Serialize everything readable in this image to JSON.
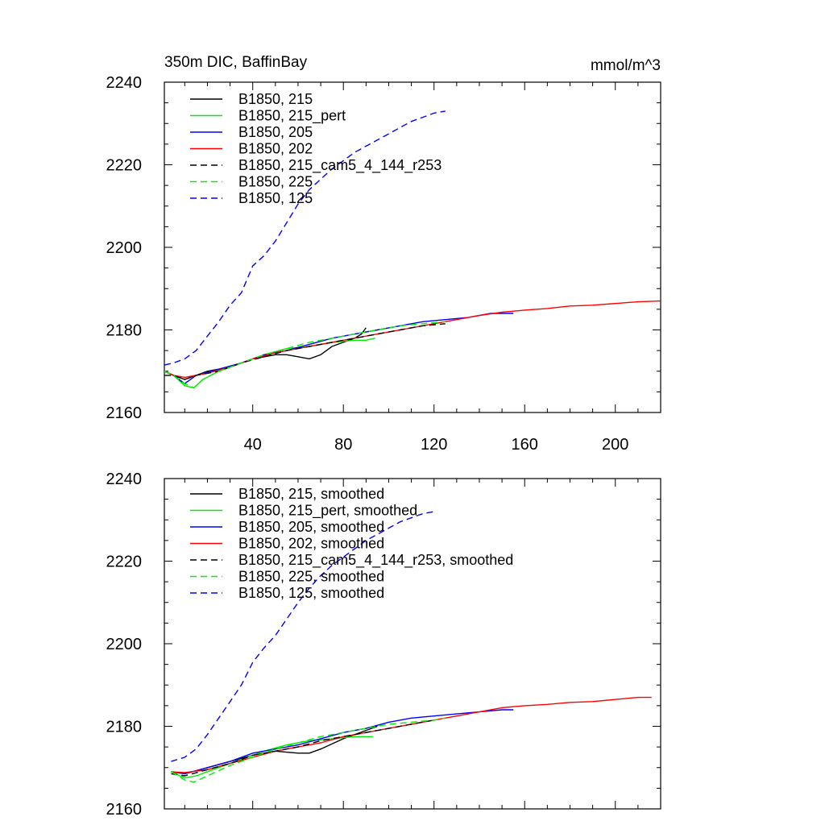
{
  "title_left": "350m DIC, BaffinBay",
  "title_right": "mmol/m^3",
  "x_ticks": [
    40,
    80,
    120,
    160,
    200
  ],
  "y_ticks": [
    2160,
    2180,
    2200,
    2220,
    2240
  ],
  "chart_data": [
    {
      "type": "line",
      "title": "350m DIC, BaffinBay",
      "units": "mmol/m^3",
      "xlim": [
        1,
        220
      ],
      "ylim": [
        2160,
        2240
      ],
      "x_tick_labels": [
        "40",
        "80",
        "120",
        "160",
        "200"
      ],
      "y_tick_labels": [
        "2160",
        "2180",
        "2200",
        "2220",
        "2240"
      ],
      "legend_position": "top-left",
      "grid": false,
      "series": [
        {
          "name": "B1850, 215",
          "color": "#000000",
          "dash": "solid",
          "points": [
            [
              1,
              2170
            ],
            [
              5,
              2169
            ],
            [
              10,
              2168
            ],
            [
              15,
              2169
            ],
            [
              20,
              2170
            ],
            [
              30,
              2171
            ],
            [
              40,
              2173
            ],
            [
              50,
              2174
            ],
            [
              55,
              2174
            ],
            [
              60,
              2173.5
            ],
            [
              65,
              2173
            ],
            [
              70,
              2174
            ],
            [
              75,
              2176
            ],
            [
              80,
              2177
            ],
            [
              85,
              2178
            ],
            [
              88,
              2179
            ],
            [
              90,
              2180.5
            ]
          ]
        },
        {
          "name": "B1850, 215_pert",
          "color": "#00ee00",
          "dash": "solid",
          "points": [
            [
              1,
              2170
            ],
            [
              5,
              2169
            ],
            [
              10,
              2166.5
            ],
            [
              14,
              2166
            ],
            [
              18,
              2168
            ],
            [
              25,
              2170
            ],
            [
              35,
              2172
            ],
            [
              45,
              2174
            ],
            [
              55,
              2175.5
            ],
            [
              65,
              2176
            ],
            [
              75,
              2177
            ],
            [
              85,
              2177.5
            ],
            [
              90,
              2177.5
            ],
            [
              94,
              2178
            ]
          ]
        },
        {
          "name": "B1850, 205",
          "color": "#0000ff",
          "dash": "solid",
          "points": [
            [
              1,
              2170
            ],
            [
              5,
              2169
            ],
            [
              10,
              2167
            ],
            [
              15,
              2169
            ],
            [
              25,
              2170.5
            ],
            [
              35,
              2172
            ],
            [
              45,
              2174
            ],
            [
              55,
              2175
            ],
            [
              65,
              2176.5
            ],
            [
              75,
              2178
            ],
            [
              85,
              2179
            ],
            [
              95,
              2180
            ],
            [
              105,
              2181
            ],
            [
              115,
              2182
            ],
            [
              125,
              2182.5
            ],
            [
              135,
              2183
            ],
            [
              145,
              2184
            ],
            [
              155,
              2184
            ]
          ]
        },
        {
          "name": "B1850, 202",
          "color": "#ff0000",
          "dash": "solid",
          "points": [
            [
              1,
              2170
            ],
            [
              5,
              2169
            ],
            [
              10,
              2168.5
            ],
            [
              20,
              2169.5
            ],
            [
              30,
              2171
            ],
            [
              40,
              2173
            ],
            [
              50,
              2174.5
            ],
            [
              60,
              2175.5
            ],
            [
              70,
              2176.5
            ],
            [
              80,
              2177.5
            ],
            [
              90,
              2178.5
            ],
            [
              100,
              2179.5
            ],
            [
              110,
              2180.5
            ],
            [
              120,
              2181.5
            ],
            [
              130,
              2182.5
            ],
            [
              140,
              2183.5
            ],
            [
              150,
              2184.3
            ],
            [
              160,
              2184.8
            ],
            [
              170,
              2185.2
            ],
            [
              180,
              2185.8
            ],
            [
              190,
              2186
            ],
            [
              200,
              2186.4
            ],
            [
              210,
              2186.8
            ],
            [
              220,
              2187
            ]
          ]
        },
        {
          "name": "B1850, 215_cam5_4_144_r253",
          "color": "#000000",
          "dash": "dashed",
          "points": [
            [
              1,
              2169
            ],
            [
              5,
              2169
            ],
            [
              10,
              2168
            ],
            [
              15,
              2169
            ],
            [
              25,
              2170
            ],
            [
              35,
              2172
            ],
            [
              45,
              2173.5
            ],
            [
              55,
              2175
            ],
            [
              65,
              2176
            ],
            [
              75,
              2177
            ],
            [
              85,
              2178
            ],
            [
              95,
              2179
            ],
            [
              105,
              2180
            ],
            [
              115,
              2181
            ],
            [
              125,
              2181.5
            ]
          ]
        },
        {
          "name": "B1850, 225",
          "color": "#00ee00",
          "dash": "dashed",
          "points": [
            [
              1,
              2170
            ],
            [
              5,
              2169
            ],
            [
              10,
              2167
            ],
            [
              14,
              2166
            ],
            [
              18,
              2168
            ],
            [
              25,
              2170
            ],
            [
              35,
              2172
            ],
            [
              45,
              2174
            ],
            [
              55,
              2175.5
            ],
            [
              65,
              2177
            ],
            [
              75,
              2178
            ],
            [
              85,
              2179
            ],
            [
              95,
              2180
            ],
            [
              105,
              2181
            ],
            [
              115,
              2181.5
            ],
            [
              125,
              2182
            ]
          ]
        },
        {
          "name": "B1850, 125",
          "color": "#0000ff",
          "dash": "dashed",
          "points": [
            [
              1,
              2171.5
            ],
            [
              5,
              2172
            ],
            [
              10,
              2173
            ],
            [
              15,
              2175
            ],
            [
              20,
              2178.5
            ],
            [
              25,
              2182
            ],
            [
              30,
              2186
            ],
            [
              35,
              2189
            ],
            [
              40,
              2195.5
            ],
            [
              45,
              2198
            ],
            [
              50,
              2201.5
            ],
            [
              55,
              2206
            ],
            [
              60,
              2210.5
            ],
            [
              65,
              2214
            ],
            [
              70,
              2216.5
            ],
            [
              75,
              2219
            ],
            [
              80,
              2221
            ],
            [
              85,
              2223
            ],
            [
              90,
              2224.5
            ],
            [
              95,
              2226
            ],
            [
              100,
              2227.5
            ],
            [
              105,
              2229
            ],
            [
              110,
              2230.5
            ],
            [
              115,
              2231.5
            ],
            [
              120,
              2232.5
            ],
            [
              125,
              2233
            ]
          ]
        }
      ]
    },
    {
      "type": "line",
      "xlim": [
        1,
        220
      ],
      "ylim": [
        2160,
        2240
      ],
      "y_tick_labels": [
        "2160",
        "2180",
        "2200",
        "2220",
        "2240"
      ],
      "legend_position": "top-left",
      "grid": false,
      "series": [
        {
          "name": "B1850, 215, smoothed",
          "color": "#000000",
          "dash": "solid",
          "points": [
            [
              4,
              2169
            ],
            [
              10,
              2168.5
            ],
            [
              20,
              2170
            ],
            [
              30,
              2171.5
            ],
            [
              40,
              2173
            ],
            [
              50,
              2174
            ],
            [
              60,
              2173.5
            ],
            [
              65,
              2173.5
            ],
            [
              70,
              2174.5
            ],
            [
              80,
              2177
            ],
            [
              90,
              2179
            ],
            [
              95,
              2180
            ]
          ]
        },
        {
          "name": "B1850, 215_pert, smoothed",
          "color": "#00ee00",
          "dash": "solid",
          "points": [
            [
              4,
              2169
            ],
            [
              10,
              2167.5
            ],
            [
              15,
              2168
            ],
            [
              25,
              2170
            ],
            [
              35,
              2172
            ],
            [
              45,
              2174
            ],
            [
              55,
              2175.5
            ],
            [
              65,
              2176.5
            ],
            [
              75,
              2177
            ],
            [
              85,
              2177.5
            ],
            [
              93,
              2177.5
            ]
          ]
        },
        {
          "name": "B1850, 205, smoothed",
          "color": "#0000ff",
          "dash": "solid",
          "points": [
            [
              4,
              2169
            ],
            [
              10,
              2168.5
            ],
            [
              20,
              2170
            ],
            [
              30,
              2171.5
            ],
            [
              40,
              2173.5
            ],
            [
              50,
              2174.5
            ],
            [
              60,
              2175.5
            ],
            [
              70,
              2177
            ],
            [
              80,
              2178.5
            ],
            [
              90,
              2179.5
            ],
            [
              100,
              2181
            ],
            [
              110,
              2182
            ],
            [
              120,
              2182.5
            ],
            [
              130,
              2183
            ],
            [
              140,
              2183.5
            ],
            [
              150,
              2184
            ],
            [
              155,
              2184
            ]
          ]
        },
        {
          "name": "B1850, 202, smoothed",
          "color": "#ff0000",
          "dash": "solid",
          "points": [
            [
              4,
              2169
            ],
            [
              10,
              2168.8
            ],
            [
              20,
              2169.5
            ],
            [
              30,
              2171
            ],
            [
              40,
              2172.5
            ],
            [
              50,
              2174
            ],
            [
              60,
              2175
            ],
            [
              70,
              2176
            ],
            [
              80,
              2177.5
            ],
            [
              90,
              2178.5
            ],
            [
              100,
              2179.5
            ],
            [
              110,
              2180.5
            ],
            [
              120,
              2181.5
            ],
            [
              130,
              2182.5
            ],
            [
              140,
              2183.5
            ],
            [
              150,
              2184.5
            ],
            [
              160,
              2185
            ],
            [
              170,
              2185.3
            ],
            [
              180,
              2185.8
            ],
            [
              190,
              2186
            ],
            [
              200,
              2186.5
            ],
            [
              210,
              2187
            ],
            [
              216,
              2187
            ]
          ]
        },
        {
          "name": "B1850, 215_cam5_4_144_r253, smoothed",
          "color": "#000000",
          "dash": "dashed",
          "points": [
            [
              4,
              2168.5
            ],
            [
              10,
              2168
            ],
            [
              20,
              2169.5
            ],
            [
              30,
              2171
            ],
            [
              40,
              2173
            ],
            [
              50,
              2174
            ],
            [
              60,
              2175
            ],
            [
              70,
              2176.5
            ],
            [
              80,
              2177.5
            ],
            [
              90,
              2178.5
            ],
            [
              100,
              2179.5
            ],
            [
              110,
              2180.5
            ],
            [
              120,
              2181.5
            ]
          ]
        },
        {
          "name": "B1850, 225, smoothed",
          "color": "#00ee00",
          "dash": "dashed",
          "points": [
            [
              4,
              2169
            ],
            [
              10,
              2167
            ],
            [
              14,
              2166.5
            ],
            [
              20,
              2168
            ],
            [
              30,
              2170.5
            ],
            [
              40,
              2172.5
            ],
            [
              50,
              2174.5
            ],
            [
              60,
              2176
            ],
            [
              70,
              2177.5
            ],
            [
              80,
              2178.5
            ],
            [
              90,
              2179.5
            ],
            [
              100,
              2180.5
            ],
            [
              110,
              2181
            ],
            [
              120,
              2181.5
            ],
            [
              125,
              2182
            ]
          ]
        },
        {
          "name": "B1850, 125, smoothed",
          "color": "#0000ff",
          "dash": "dashed",
          "points": [
            [
              4,
              2171.5
            ],
            [
              10,
              2172.5
            ],
            [
              15,
              2174.5
            ],
            [
              20,
              2178
            ],
            [
              25,
              2182
            ],
            [
              30,
              2186
            ],
            [
              35,
              2190
            ],
            [
              40,
              2195.5
            ],
            [
              45,
              2199
            ],
            [
              50,
              2202
            ],
            [
              55,
              2206
            ],
            [
              60,
              2210
            ],
            [
              65,
              2213.5
            ],
            [
              70,
              2216.5
            ],
            [
              75,
              2219
            ],
            [
              80,
              2221
            ],
            [
              85,
              2223
            ],
            [
              90,
              2225
            ],
            [
              95,
              2226.5
            ],
            [
              100,
              2228
            ],
            [
              105,
              2229.5
            ],
            [
              110,
              2230.5
            ],
            [
              115,
              2231.5
            ],
            [
              120,
              2232
            ]
          ]
        }
      ]
    }
  ]
}
